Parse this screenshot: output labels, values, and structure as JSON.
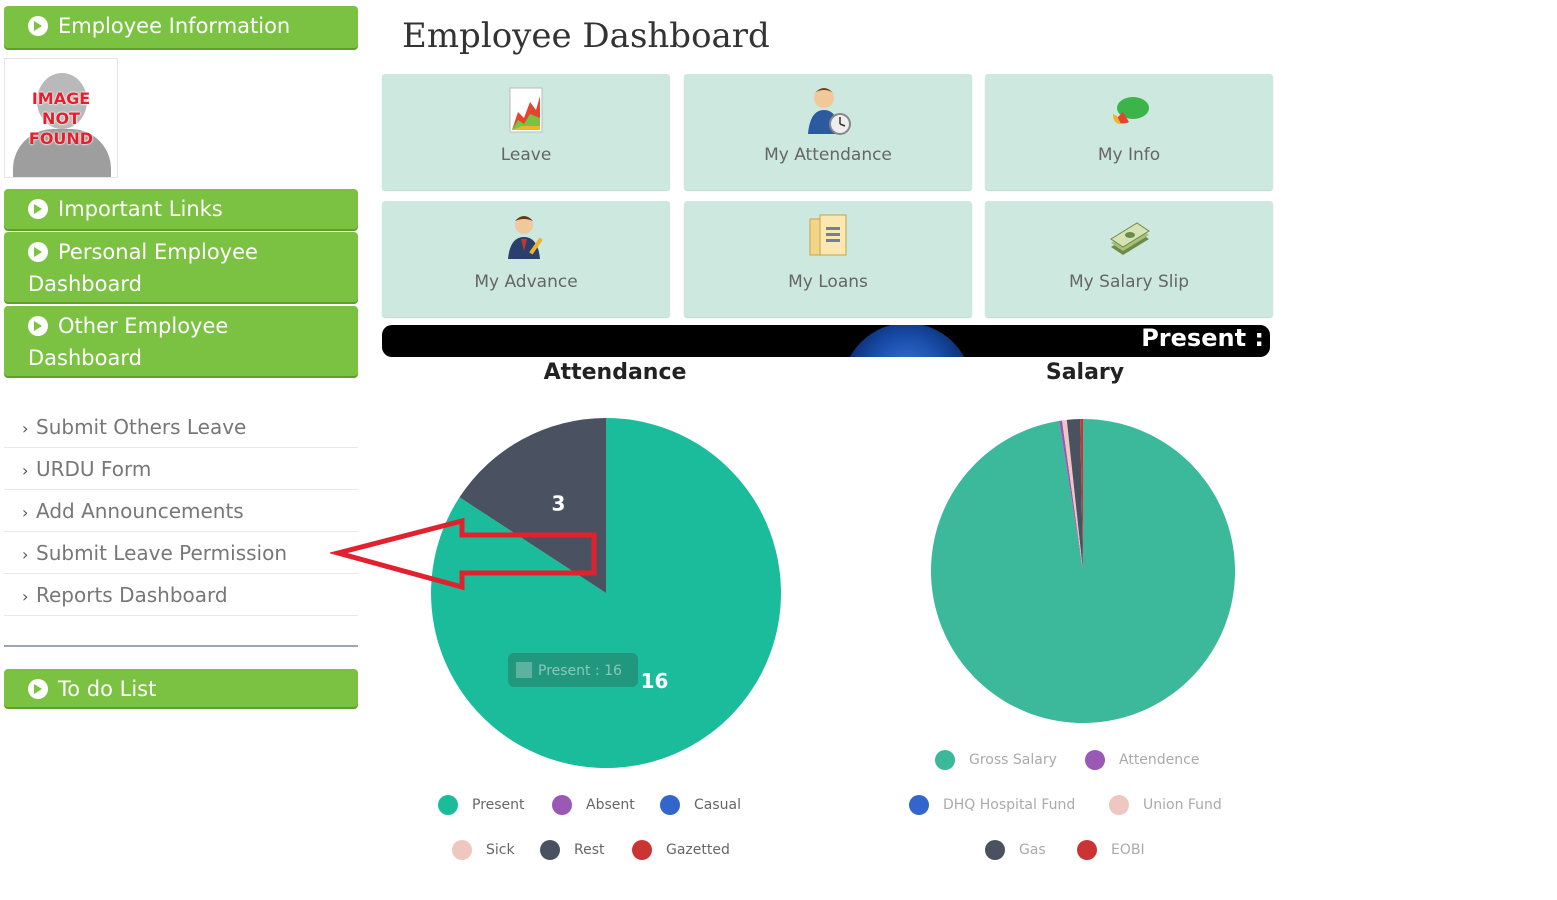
{
  "sidebar": {
    "employee_information": "Employee Information",
    "avatar_text": [
      "IMAGE",
      "NOT",
      "FOUND"
    ],
    "important_links": "Important Links",
    "personal_dashboard": [
      "Personal Employee",
      "Dashboard"
    ],
    "other_dashboard": [
      "Other Employee",
      "Dashboard"
    ],
    "links": [
      "Submit Others Leave",
      "URDU Form",
      "Add Announcements",
      "Submit Leave Permission",
      "Reports Dashboard"
    ],
    "todo": "To do List"
  },
  "main": {
    "title": "Employee Dashboard",
    "tiles": [
      {
        "label": "Leave",
        "icon": "chart-icon"
      },
      {
        "label": "My Attendance",
        "icon": "user-clock-icon"
      },
      {
        "label": "My Info",
        "icon": "pie-icon"
      },
      {
        "label": "My Advance",
        "icon": "user-pen-icon"
      },
      {
        "label": "My Loans",
        "icon": "document-icon"
      },
      {
        "label": "My Salary Slip",
        "icon": "money-icon"
      }
    ],
    "banner_text": "Present :"
  },
  "colors": {
    "green": "#7cc242",
    "tile": "#cde8df",
    "present": "#1abc9c",
    "absent": "#9b59b6",
    "casual": "#3366cc",
    "sick": "#f0c6c0",
    "rest": "#4a5262",
    "gazetted": "#cc3333",
    "gross_salary": "#3cb89b",
    "arrow": "#e3202e"
  },
  "chart_data": [
    {
      "type": "pie",
      "title": "Attendance",
      "categories": [
        "Present",
        "Absent",
        "Casual",
        "Sick",
        "Rest",
        "Gazetted"
      ],
      "values": [
        16,
        0,
        0,
        0,
        3,
        0
      ],
      "colors": [
        "#1abc9c",
        "#9b59b6",
        "#3366cc",
        "#f0c6c0",
        "#4a5262",
        "#cc3333"
      ],
      "data_labels": [
        "16",
        "",
        "",
        "",
        "3",
        ""
      ],
      "tooltip": "Present : 16",
      "legend": "bottom"
    },
    {
      "type": "pie",
      "title": "Salary",
      "categories": [
        "Gross Salary",
        "Attendence",
        "DHQ Hospital Fund",
        "Union Fund",
        "Gas",
        "EOBI"
      ],
      "values": [
        97.5,
        0.3,
        0,
        0.5,
        1.4,
        0.3
      ],
      "colors": [
        "#3cb89b",
        "#9b59b6",
        "#3366cc",
        "#f0c6c0",
        "#4a5262",
        "#cc3333"
      ],
      "legend": "bottom"
    }
  ]
}
